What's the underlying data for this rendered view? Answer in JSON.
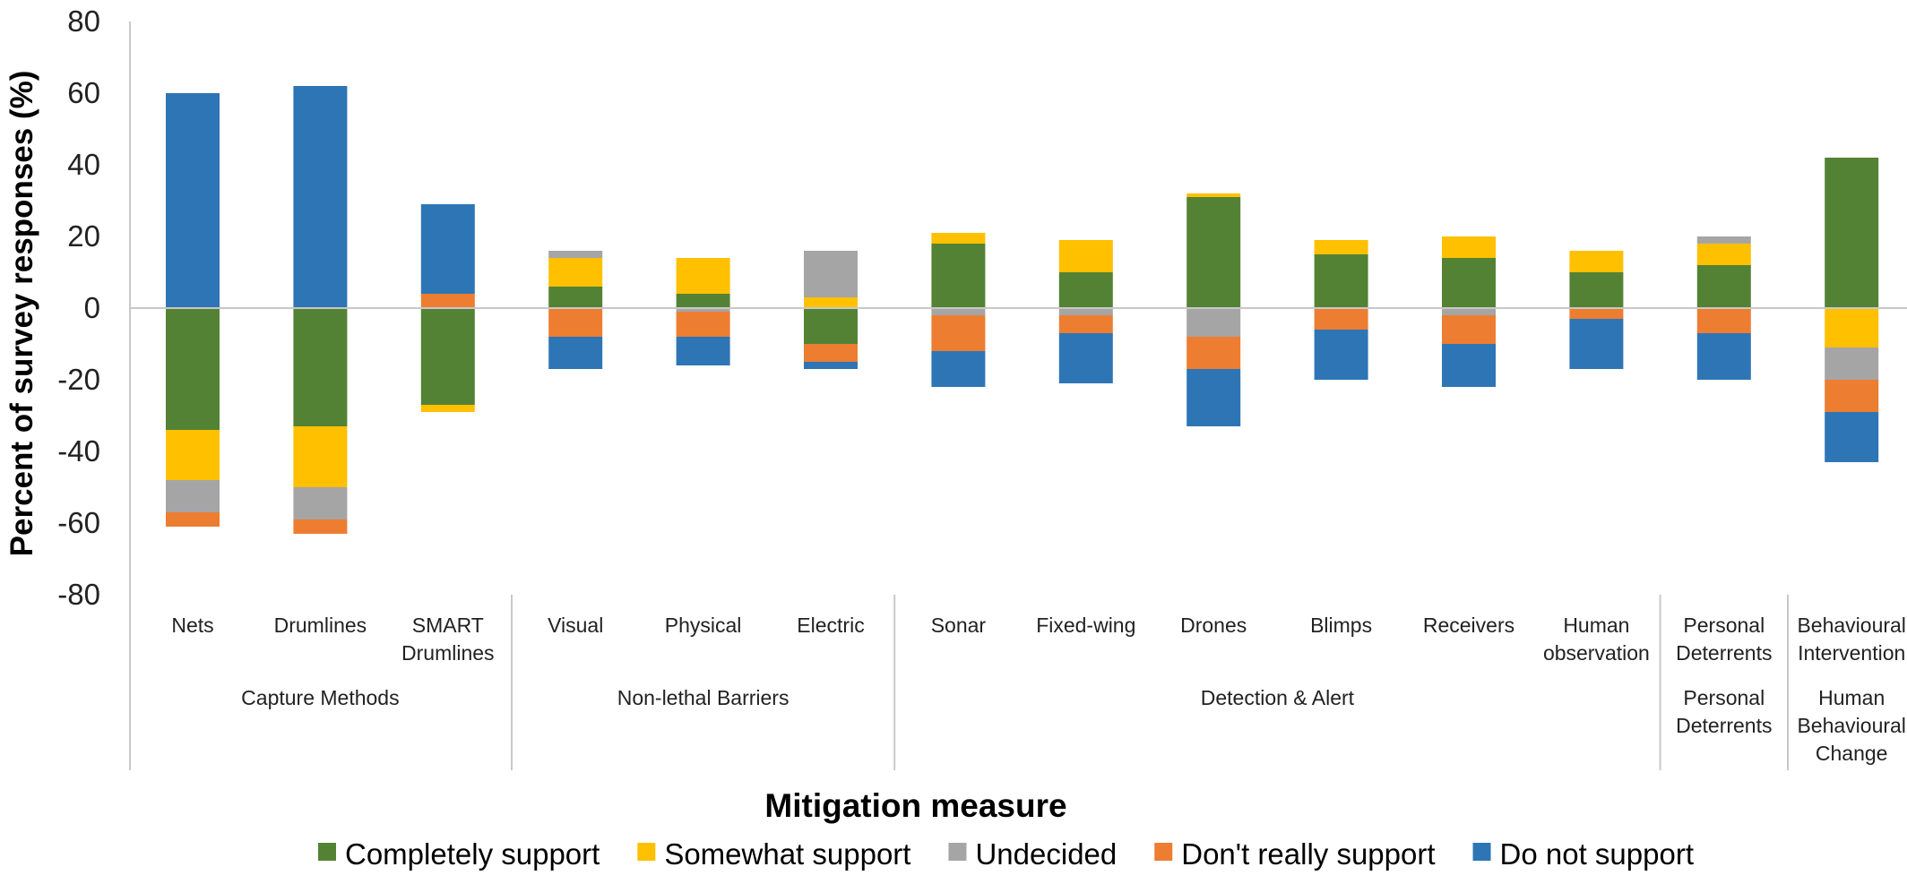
{
  "chart_data": {
    "type": "bar",
    "stacked": "diverging",
    "xlabel": "Mitigation measure",
    "ylabel": "Percent of survey responses (%)",
    "ylim": [
      -80,
      80
    ],
    "yticks": [
      "80",
      "60",
      "40",
      "20",
      "0",
      "-20",
      "-40",
      "-60",
      "-80"
    ],
    "grid": false,
    "legend_position": "bottom",
    "categories": [
      {
        "label": [
          "Nets"
        ],
        "group": 0
      },
      {
        "label": [
          "Drumlines"
        ],
        "group": 0
      },
      {
        "label": [
          "SMART",
          "Drumlines"
        ],
        "group": 0
      },
      {
        "label": [
          "Visual"
        ],
        "group": 1
      },
      {
        "label": [
          "Physical"
        ],
        "group": 1
      },
      {
        "label": [
          "Electric"
        ],
        "group": 1
      },
      {
        "label": [
          "Sonar"
        ],
        "group": 2
      },
      {
        "label": [
          "Fixed-wing"
        ],
        "group": 2
      },
      {
        "label": [
          "Drones"
        ],
        "group": 2
      },
      {
        "label": [
          "Blimps"
        ],
        "group": 2
      },
      {
        "label": [
          "Receivers"
        ],
        "group": 2
      },
      {
        "label": [
          "Human",
          "observation"
        ],
        "group": 2
      },
      {
        "label": [
          "Personal",
          "Deterrents"
        ],
        "group": 3
      },
      {
        "label": [
          "Behavioural",
          "Intervention"
        ],
        "group": 4
      }
    ],
    "groups": [
      {
        "label": [
          "Capture Methods"
        ]
      },
      {
        "label": [
          "Non-lethal Barriers"
        ]
      },
      {
        "label": [
          "Detection & Alert"
        ]
      },
      {
        "label": [
          "Personal",
          "Deterrents"
        ]
      },
      {
        "label": [
          "Human",
          "Behavioural",
          "Change"
        ]
      }
    ],
    "series": [
      {
        "name": "Completely support",
        "color": "#548235"
      },
      {
        "name": "Somewhat support",
        "color": "#FFC000"
      },
      {
        "name": "Undecided",
        "color": "#A5A5A5"
      },
      {
        "name": "Don't really support",
        "color": "#ED7D31"
      },
      {
        "name": "Do not support",
        "color": "#2E75B6"
      }
    ],
    "positive_segments": [
      [
        [
          4,
          60
        ]
      ],
      [
        [
          4,
          62
        ]
      ],
      [
        [
          3,
          4
        ],
        [
          4,
          25
        ]
      ],
      [
        [
          0,
          6
        ],
        [
          1,
          8
        ],
        [
          2,
          2
        ]
      ],
      [
        [
          0,
          4
        ],
        [
          1,
          10
        ]
      ],
      [
        [
          1,
          3
        ],
        [
          2,
          13
        ]
      ],
      [
        [
          0,
          18
        ],
        [
          1,
          3
        ]
      ],
      [
        [
          0,
          10
        ],
        [
          1,
          9
        ]
      ],
      [
        [
          0,
          31
        ],
        [
          1,
          1
        ]
      ],
      [
        [
          0,
          15
        ],
        [
          1,
          4
        ]
      ],
      [
        [
          0,
          14
        ],
        [
          1,
          6
        ]
      ],
      [
        [
          0,
          10
        ],
        [
          1,
          6
        ]
      ],
      [
        [
          0,
          12
        ],
        [
          1,
          6
        ],
        [
          2,
          2
        ]
      ],
      [
        [
          0,
          42
        ]
      ]
    ],
    "negative_segments": [
      [
        [
          0,
          34
        ],
        [
          1,
          14
        ],
        [
          2,
          9
        ],
        [
          3,
          4
        ]
      ],
      [
        [
          0,
          33
        ],
        [
          1,
          17
        ],
        [
          2,
          9
        ],
        [
          3,
          4
        ]
      ],
      [
        [
          0,
          27
        ],
        [
          1,
          2
        ]
      ],
      [
        [
          3,
          8
        ],
        [
          4,
          9
        ]
      ],
      [
        [
          2,
          1
        ],
        [
          3,
          7
        ],
        [
          4,
          8
        ]
      ],
      [
        [
          0,
          10
        ],
        [
          3,
          5
        ],
        [
          4,
          2
        ]
      ],
      [
        [
          2,
          2
        ],
        [
          3,
          10
        ],
        [
          4,
          10
        ]
      ],
      [
        [
          2,
          2
        ],
        [
          3,
          5
        ],
        [
          4,
          14
        ]
      ],
      [
        [
          2,
          8
        ],
        [
          3,
          9
        ],
        [
          4,
          16
        ]
      ],
      [
        [
          3,
          6
        ],
        [
          4,
          14
        ]
      ],
      [
        [
          2,
          2
        ],
        [
          3,
          8
        ],
        [
          4,
          12
        ]
      ],
      [
        [
          3,
          3
        ],
        [
          4,
          14
        ]
      ],
      [
        [
          3,
          7
        ],
        [
          4,
          13
        ]
      ],
      [
        [
          1,
          11
        ],
        [
          2,
          9
        ],
        [
          3,
          9
        ],
        [
          4,
          14
        ]
      ]
    ]
  }
}
